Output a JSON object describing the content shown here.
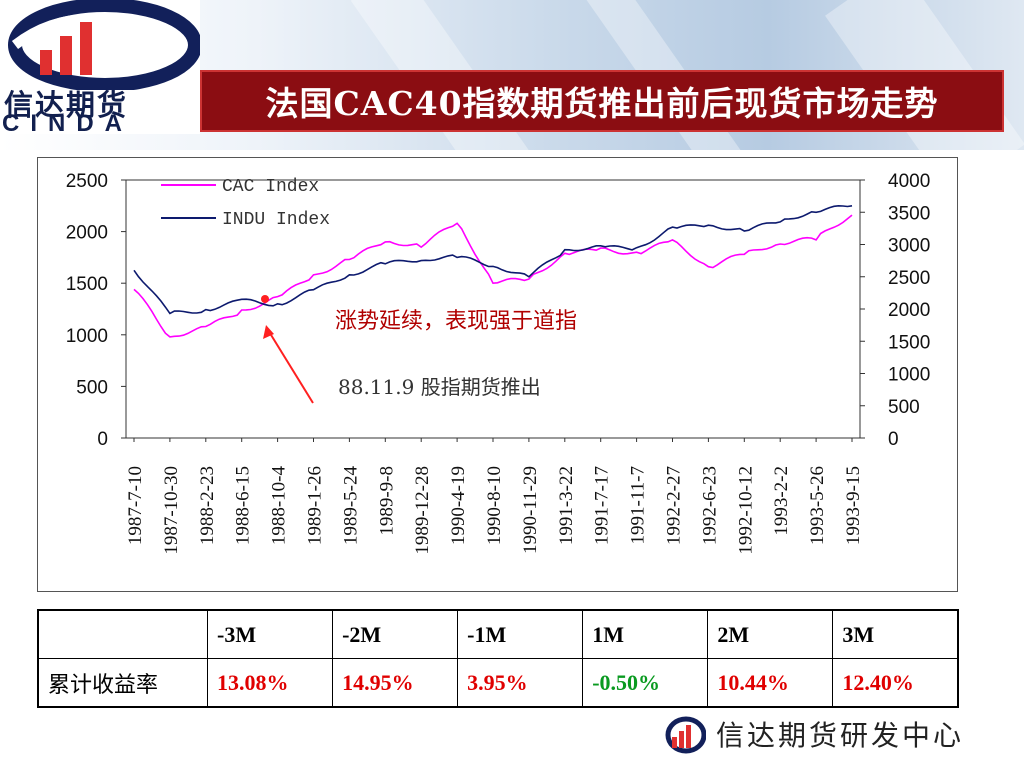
{
  "header": {
    "title": "法国CAC40指数期货推出前后现货市场走势",
    "logo_cn": "信达期货",
    "logo_en": "CINDA"
  },
  "colors": {
    "title_bg": "#8b0d12",
    "cac": "#ff00ff",
    "indu": "#0d1a6e",
    "positive": "#e00000",
    "negative": "#0a9a20"
  },
  "chart_data": {
    "type": "line",
    "title": "",
    "x": [
      "1987-7-10",
      "1987-10-30",
      "1988-2-23",
      "1988-6-15",
      "1988-10-4",
      "1989-1-26",
      "1989-5-24",
      "1989-9-8",
      "1989-12-28",
      "1990-4-19",
      "1990-8-10",
      "1990-11-29",
      "1991-3-22",
      "1991-7-17",
      "1991-11-7",
      "1992-2-27",
      "1992-6-23",
      "1992-10-12",
      "1993-2-2",
      "1993-5-26",
      "1993-9-15"
    ],
    "y_left_ticks": [
      "2500",
      "2000",
      "1500",
      "1000",
      "500",
      "0"
    ],
    "y_right_ticks": [
      "4000",
      "3500",
      "3000",
      "2500",
      "2000",
      "1500",
      "1000",
      "500",
      "0"
    ],
    "ylim_left": [
      0,
      2500
    ],
    "ylim_right": [
      0,
      4000
    ],
    "legend_position": "top-left",
    "series": [
      {
        "name": "CAC Index",
        "axis": "left",
        "color": "#ff00ff",
        "values": [
          1440,
          980,
          1080,
          1240,
          1370,
          1580,
          1730,
          1900,
          1850,
          2080,
          1500,
          1540,
          1790,
          1840,
          1800,
          1920,
          1660,
          1780,
          1880,
          1920,
          2160
        ]
      },
      {
        "name": "INDU Index",
        "axis": "right",
        "color": "#0d1a6e",
        "values": [
          2600,
          1930,
          1990,
          2150,
          2080,
          2300,
          2530,
          2700,
          2750,
          2800,
          2660,
          2500,
          2920,
          2980,
          2950,
          3270,
          3300,
          3210,
          3350,
          3500,
          3600
        ]
      }
    ],
    "annotations": {
      "trend_text": "涨势延续，表现强于道指",
      "launch_text": "88.11.9 股指期货推出"
    }
  },
  "table": {
    "headers": [
      "",
      "-3M",
      "-2M",
      "-1M",
      "1M",
      "2M",
      "3M"
    ],
    "row_label": "累计收益率",
    "values": [
      "13.08%",
      "14.95%",
      "3.95%",
      "-0.50%",
      "10.44%",
      "12.40%"
    ]
  },
  "footer": {
    "text": "信达期货研发中心"
  }
}
